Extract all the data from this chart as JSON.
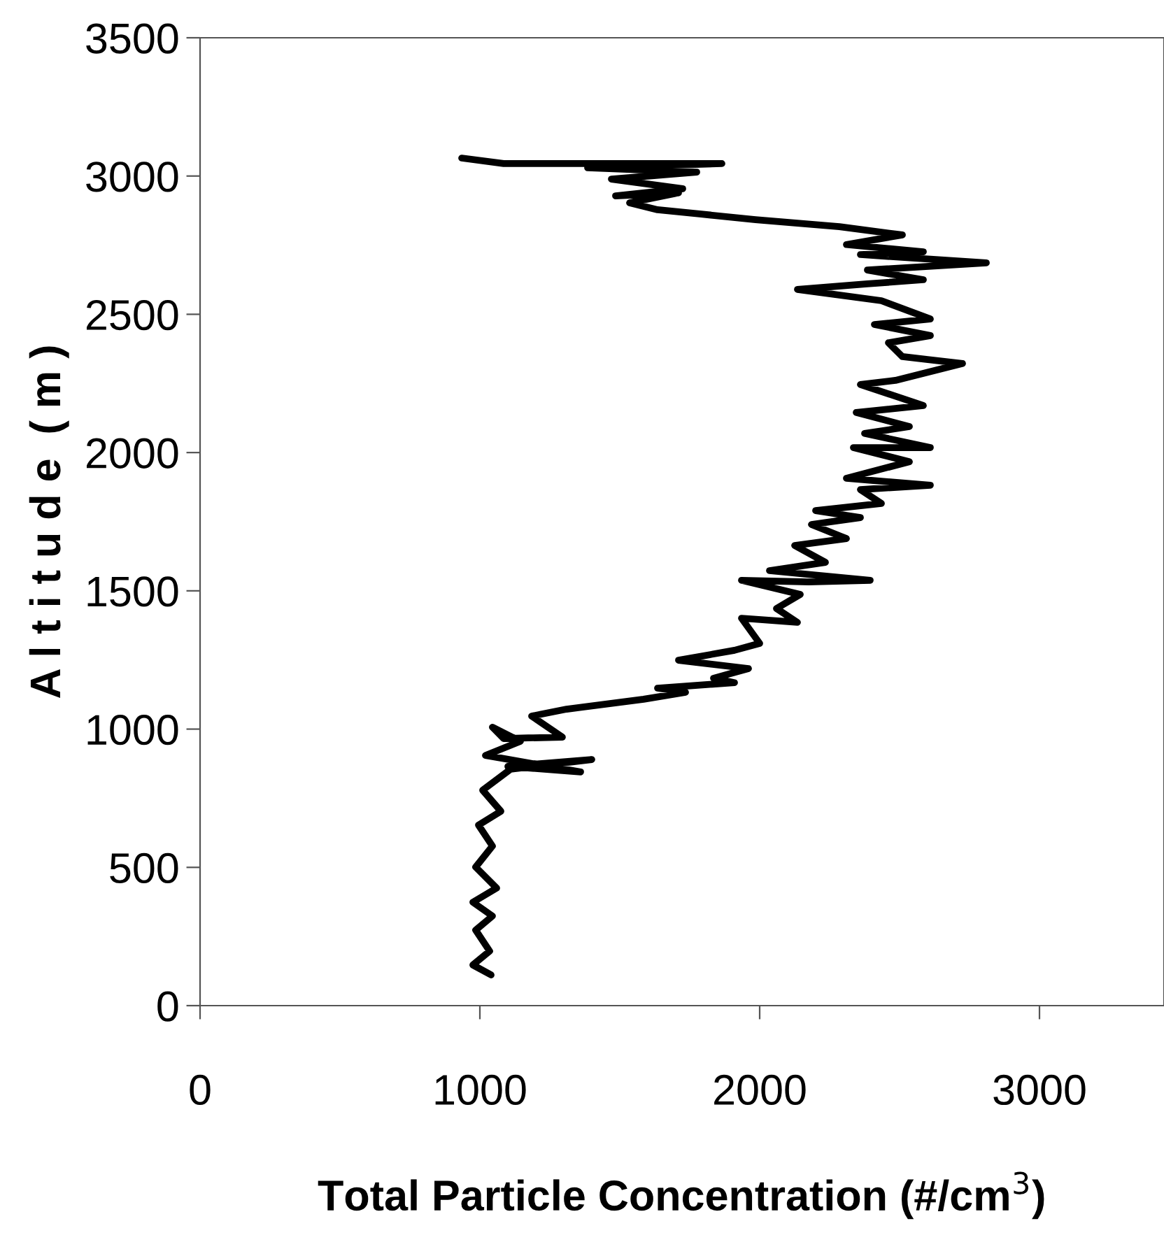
{
  "chart_data": {
    "type": "line",
    "xlabel": "Total Particle Concentration (#/cm$^{3}$)",
    "ylabel": "A l t i t u d e  ( m )",
    "xlim": [
      0,
      3445
    ],
    "xticks": [
      0,
      1000,
      2000,
      3000
    ],
    "ylim": [
      0,
      3500
    ],
    "yticks": [
      0,
      500,
      1000,
      1500,
      2000,
      2500,
      3000,
      3500
    ],
    "grid": false,
    "marker": "none",
    "line_style": "solid",
    "series": [
      {
        "color": "#000000",
        "x": [
          1040,
          975,
          1035,
          985,
          1045,
          975,
          1060,
          985,
          1045,
          995,
          1075,
          1010,
          1110,
          1400,
          1100,
          1360,
          1020,
          1145,
          1045,
          1085,
          1295,
          1185,
          1310,
          1585,
          1735,
          1635,
          1910,
          1835,
          1960,
          1710,
          1910,
          2000,
          1935,
          2135,
          2060,
          2145,
          1935,
          2175,
          2395,
          2035,
          2235,
          2125,
          2310,
          2185,
          2360,
          2200,
          2435,
          2360,
          2610,
          2310,
          2535,
          2335,
          2610,
          2375,
          2535,
          2345,
          2585,
          2360,
          2485,
          2725,
          2510,
          2460,
          2610,
          2410,
          2610,
          2435,
          2135,
          2385,
          2585,
          2385,
          2810,
          2360,
          2585,
          2310,
          2510,
          2285,
          1985,
          1785,
          1635,
          1535,
          1710,
          1485,
          1725,
          1470,
          1775,
          1385,
          1865,
          1085,
          935
        ],
        "values": [
          111,
          147,
          197,
          273,
          324,
          374,
          425,
          501,
          577,
          653,
          703,
          779,
          855,
          890,
          865,
          845,
          905,
          956,
          1007,
          966,
          971,
          1047,
          1072,
          1108,
          1133,
          1148,
          1168,
          1184,
          1219,
          1249,
          1285,
          1310,
          1401,
          1386,
          1436,
          1487,
          1538,
          1532,
          1538,
          1573,
          1603,
          1664,
          1689,
          1740,
          1765,
          1790,
          1816,
          1866,
          1882,
          1907,
          1967,
          2018,
          2018,
          2069,
          2094,
          2145,
          2170,
          2246,
          2261,
          2322,
          2347,
          2397,
          2423,
          2463,
          2483,
          2549,
          2590,
          2610,
          2625,
          2660,
          2686,
          2716,
          2726,
          2752,
          2787,
          2817,
          2842,
          2863,
          2878,
          2903,
          2939,
          2928,
          2954,
          2989,
          3014,
          3030,
          3045,
          3045,
          3065
        ]
      }
    ]
  }
}
